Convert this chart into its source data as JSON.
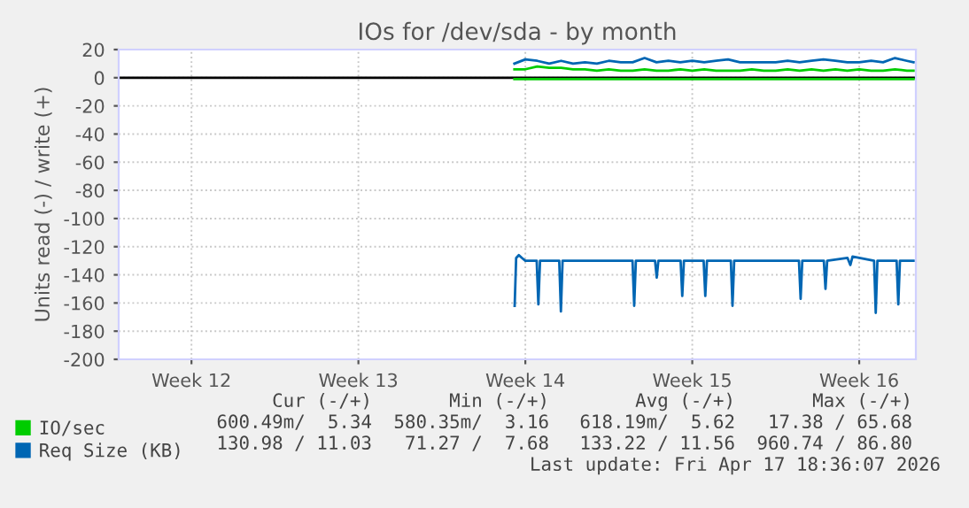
{
  "chart_data": {
    "type": "line",
    "title": "IOs for /dev/sda - by month",
    "ylabel": "Units read (-) / write (+)",
    "xlim": [
      "2026-03-15T10:45",
      "2026-04-17T21:00"
    ],
    "xticks": [
      {
        "value": "2026-03-18T12:00",
        "label": "Week 12"
      },
      {
        "value": "2026-03-25T12:00",
        "label": "Week 13"
      },
      {
        "value": "2026-04-01T12:00",
        "label": "Week 14"
      },
      {
        "value": "2026-04-08T12:00",
        "label": "Week 15"
      },
      {
        "value": "2026-04-15T12:00",
        "label": "Week 16"
      }
    ],
    "ylim": [
      -200,
      20
    ],
    "yticks": [
      -200,
      -180,
      -160,
      -140,
      -120,
      -100,
      -80,
      -60,
      -40,
      -20,
      0,
      20
    ],
    "grid": true,
    "legend": "bottom",
    "line_style": "solid",
    "marker": "none",
    "ref_lines": [
      {
        "axis": "y",
        "value": 0,
        "color": "#000000"
      }
    ],
    "series": [
      {
        "color": "#00cc00",
        "x": [
          "2026-04-01T01:00",
          "2026-04-06T00:00",
          "2026-04-11T00:00",
          "2026-04-17T18:36"
        ],
        "values": [
          -1,
          -1,
          -1,
          -1
        ]
      },
      {
        "name": "IO/sec",
        "color": "#00cc00",
        "x": [
          "2026-04-01T01:00",
          "2026-04-01T12:00",
          "2026-04-02T00:00",
          "2026-04-02T12:00",
          "2026-04-03T00:00",
          "2026-04-03T12:00",
          "2026-04-04T00:00",
          "2026-04-04T12:00",
          "2026-04-05T00:00",
          "2026-04-05T12:00",
          "2026-04-06T00:00",
          "2026-04-06T12:00",
          "2026-04-07T00:00",
          "2026-04-07T12:00",
          "2026-04-08T00:00",
          "2026-04-08T12:00",
          "2026-04-09T00:00",
          "2026-04-09T12:00",
          "2026-04-10T00:00",
          "2026-04-10T12:00",
          "2026-04-11T00:00",
          "2026-04-11T12:00",
          "2026-04-12T00:00",
          "2026-04-12T12:00",
          "2026-04-13T00:00",
          "2026-04-13T12:00",
          "2026-04-14T00:00",
          "2026-04-14T12:00",
          "2026-04-15T00:00",
          "2026-04-15T12:00",
          "2026-04-16T00:00",
          "2026-04-16T12:00",
          "2026-04-17T00:00",
          "2026-04-17T12:00",
          "2026-04-17T18:36"
        ],
        "values": [
          6,
          6,
          8,
          7,
          7,
          6,
          6,
          5,
          6,
          5,
          5,
          6,
          5,
          5,
          6,
          5,
          6,
          5,
          5,
          5,
          6,
          5,
          5,
          6,
          5,
          6,
          5,
          6,
          5,
          6,
          5,
          5,
          6,
          5,
          5
        ]
      },
      {
        "color": "#0066b3",
        "x": [
          "2026-04-01T01:15",
          "2026-04-01T02:45",
          "2026-04-01T05:27",
          "2026-04-01T08:38",
          "2026-04-01T12:00",
          "2026-04-01T23:25",
          "2026-04-02T01:06",
          "2026-04-02T02:47",
          "2026-04-02T22:06",
          "2026-04-02T23:47",
          "2026-04-03T01:28",
          "2026-04-05T23:51",
          "2026-04-06T01:32",
          "2026-04-06T03:13",
          "2026-04-06T22:32",
          "2026-04-07T00:13",
          "2026-04-07T01:54",
          "2026-04-08T00:14",
          "2026-04-08T01:55",
          "2026-04-08T03:36",
          "2026-04-08T23:25",
          "2026-04-09T01:06",
          "2026-04-09T02:47",
          "2026-04-10T02:48",
          "2026-04-10T04:29",
          "2026-04-10T06:10",
          "2026-04-12T23:21",
          "2026-04-13T01:02",
          "2026-04-13T02:43",
          "2026-04-14T00:23",
          "2026-04-14T02:04",
          "2026-04-14T03:45",
          "2026-04-15T00:14",
          "2026-04-15T03:06",
          "2026-04-15T05:17",
          "2026-04-16T02:57",
          "2026-04-16T04:38",
          "2026-04-16T06:19",
          "2026-04-17T01:38",
          "2026-04-17T03:19",
          "2026-04-17T04:59",
          "2026-04-17T18:36"
        ],
        "values": [
          -162,
          -128,
          -126,
          -128,
          -130,
          -130,
          -161,
          -130,
          -130,
          -166,
          -130,
          -130,
          -162,
          -130,
          -130,
          -142,
          -130,
          -130,
          -155,
          -130,
          -130,
          -155,
          -130,
          -130,
          -162,
          -130,
          -130,
          -157,
          -130,
          -130,
          -150,
          -130,
          -128,
          -133,
          -127,
          -130,
          -167,
          -130,
          -130,
          -161,
          -130,
          -130
        ]
      },
      {
        "name": "Req Size (KB)",
        "color": "#0066b3",
        "x": [
          "2026-04-01T01:00",
          "2026-04-01T12:00",
          "2026-04-02T00:00",
          "2026-04-02T12:00",
          "2026-04-03T00:00",
          "2026-04-03T12:00",
          "2026-04-04T00:00",
          "2026-04-04T12:00",
          "2026-04-05T00:00",
          "2026-04-05T12:00",
          "2026-04-06T00:00",
          "2026-04-06T12:00",
          "2026-04-07T00:00",
          "2026-04-07T12:00",
          "2026-04-08T00:00",
          "2026-04-08T12:00",
          "2026-04-09T00:00",
          "2026-04-09T12:00",
          "2026-04-10T00:00",
          "2026-04-10T12:00",
          "2026-04-11T00:00",
          "2026-04-11T12:00",
          "2026-04-12T00:00",
          "2026-04-12T12:00",
          "2026-04-13T00:00",
          "2026-04-13T12:00",
          "2026-04-14T00:00",
          "2026-04-14T12:00",
          "2026-04-15T00:00",
          "2026-04-15T12:00",
          "2026-04-16T00:00",
          "2026-04-16T12:00",
          "2026-04-17T00:00",
          "2026-04-17T12:00",
          "2026-04-17T18:36"
        ],
        "values": [
          10,
          13,
          12,
          10,
          12,
          10,
          11,
          10,
          12,
          11,
          11,
          14,
          11,
          12,
          11,
          12,
          11,
          12,
          13,
          11,
          11,
          11,
          11,
          12,
          11,
          12,
          13,
          12,
          11,
          11,
          12,
          11,
          14,
          12,
          11
        ]
      }
    ],
    "annotations": [
      "Cur (-/+)",
      "Min (-/+)",
      "Avg (-/+)",
      "Max (-/+)",
      "600.49m/  5.34",
      "580.35m/  3.16",
      "618.19m/  5.62",
      "17.38 / 65.68",
      "130.98 / 11.03",
      "71.27 /  7.68",
      "133.22 / 11.56",
      "960.74 / 86.80",
      "Last update: Fri Apr 17 18:36:07 2026"
    ]
  }
}
